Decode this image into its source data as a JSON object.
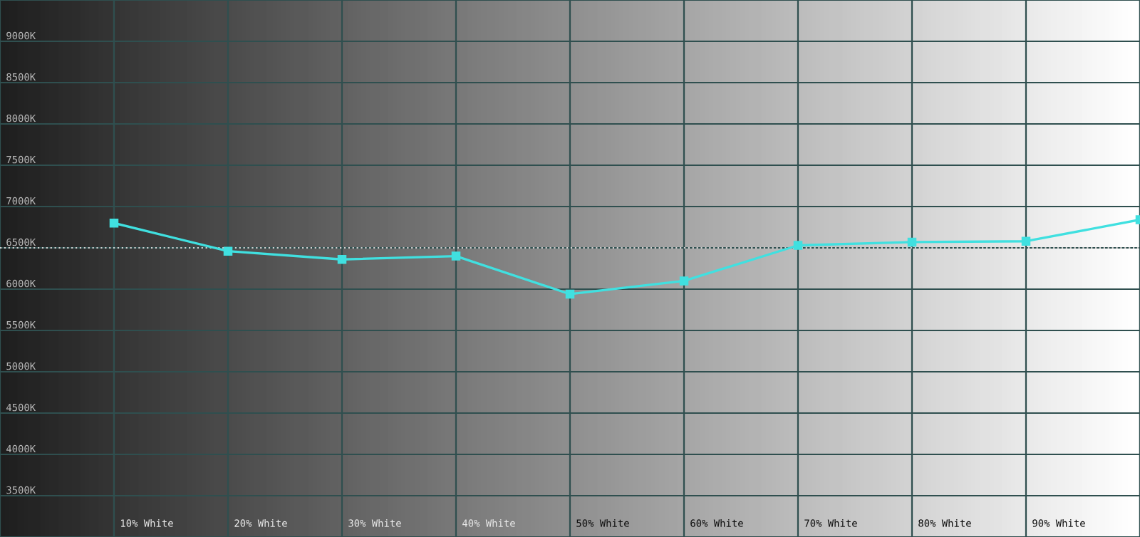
{
  "chart_data": {
    "type": "line",
    "categories": [
      "10% White",
      "20% White",
      "30% White",
      "40% White",
      "50% White",
      "60% White",
      "70% White",
      "80% White",
      "90% White",
      null
    ],
    "series": [
      {
        "color": "#40e0e0",
        "values": [
          6800,
          6460,
          6360,
          6400,
          5940,
          6100,
          6530,
          6570,
          6580,
          6840
        ]
      }
    ],
    "ylim": [
      3000,
      9500
    ],
    "yticks": [
      {
        "value": 3500,
        "label": "3500K"
      },
      {
        "value": 4000,
        "label": "4000K"
      },
      {
        "value": 4500,
        "label": "4500K"
      },
      {
        "value": 5000,
        "label": "5000K"
      },
      {
        "value": 5500,
        "label": "5500K"
      },
      {
        "value": 6000,
        "label": "6000K"
      },
      {
        "value": 6500,
        "label": "6500K"
      },
      {
        "value": 7000,
        "label": "7000K"
      },
      {
        "value": 7500,
        "label": "7500K"
      },
      {
        "value": 8000,
        "label": "8000K"
      },
      {
        "value": 8500,
        "label": "8500K"
      },
      {
        "value": 9000,
        "label": "9000K"
      }
    ],
    "ref_lines": [
      {
        "axis": "y",
        "value": 6500,
        "color": "#d0d0d0",
        "line_style": "dotted"
      }
    ],
    "grid": true,
    "marker": "square",
    "line_style": "solid"
  }
}
